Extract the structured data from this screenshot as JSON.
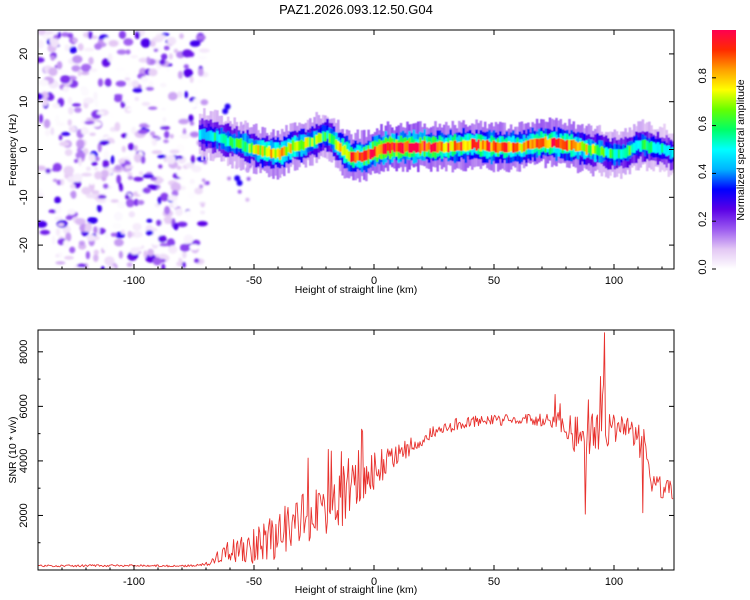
{
  "title": "PAZ1.2026.093.12.50.G04",
  "chart_data": [
    {
      "type": "heatmap",
      "xlabel": "Height of straight line (km)",
      "ylabel": "Frequency (Hz)",
      "xlim": [
        -140,
        125
      ],
      "ylim": [
        -25,
        25
      ],
      "xticks": [
        -100,
        -50,
        0,
        50,
        100
      ],
      "yticks": [
        -20,
        -10,
        0,
        10,
        20
      ],
      "noise_region_x": [
        -140,
        -73
      ],
      "ridge": {
        "x": [
          -73,
          -70,
          -65,
          -60,
          -55,
          -50,
          -45,
          -40,
          -35,
          -30,
          -25,
          -20,
          -15,
          -10,
          -5,
          0,
          5,
          10,
          20,
          30,
          40,
          50,
          60,
          70,
          80,
          90,
          95,
          100,
          105,
          110,
          115,
          120,
          125
        ],
        "frequency": [
          3,
          3,
          2.5,
          1.5,
          1,
          0,
          -0.5,
          -1,
          0.5,
          1,
          2,
          3,
          0.5,
          -1.5,
          -1.5,
          -0.5,
          0.5,
          0.5,
          0.5,
          0.5,
          1,
          0.5,
          0.5,
          1.5,
          1,
          0,
          -0.5,
          -1,
          -0.5,
          1,
          0.5,
          0,
          -1
        ],
        "amplitude": [
          0.45,
          0.5,
          0.55,
          0.55,
          0.6,
          0.7,
          0.75,
          0.8,
          0.75,
          0.7,
          0.65,
          0.6,
          0.75,
          0.85,
          0.9,
          0.92,
          0.98,
          1.0,
          0.95,
          0.85,
          0.85,
          0.9,
          0.8,
          0.9,
          0.85,
          0.7,
          0.6,
          0.55,
          0.6,
          0.55,
          0.55,
          0.5,
          0.45
        ]
      },
      "colorbar": {
        "label": "Normalized spectral amplitude",
        "range": [
          0,
          1
        ],
        "ticks": [
          "0.0",
          "0.2",
          "0.4",
          "0.6",
          "0.8"
        ],
        "colormap": [
          "#ffffff",
          "#e3c7f4",
          "#9b59f0",
          "#5a00e6",
          "#0000ff",
          "#00b4ff",
          "#00ffff",
          "#00ff66",
          "#66ff00",
          "#ffff00",
          "#ffa000",
          "#ff2a00",
          "#ff0050"
        ]
      }
    },
    {
      "type": "line",
      "xlabel": "Height of straight line (km)",
      "ylabel": "SNR (10 * v/v)",
      "xlim": [
        -140,
        125
      ],
      "ylim": [
        0,
        8800
      ],
      "xticks": [
        -100,
        -50,
        0,
        50,
        100
      ],
      "yticks": [
        2000,
        4000,
        6000,
        8000
      ],
      "color": "#e8322e",
      "trend": {
        "x": [
          -140,
          -110,
          -80,
          -75,
          -70,
          -68,
          -65,
          -60,
          -55,
          -50,
          -45,
          -40,
          -35,
          -30,
          -25,
          -20,
          -15,
          -10,
          -5,
          0,
          5,
          10,
          15,
          20,
          25,
          30,
          35,
          40,
          45,
          50,
          55,
          60,
          65,
          70,
          75,
          78,
          80,
          85,
          90,
          95,
          100,
          105,
          110,
          113,
          115,
          120,
          125
        ],
        "y": [
          150,
          160,
          150,
          170,
          200,
          300,
          500,
          700,
          800,
          900,
          1000,
          1300,
          1600,
          1800,
          2000,
          2300,
          2500,
          2900,
          3200,
          3600,
          3900,
          4200,
          4500,
          4750,
          5000,
          5200,
          5350,
          5400,
          5450,
          5500,
          5500,
          5500,
          5500,
          5500,
          5550,
          5600,
          5300,
          4900,
          5000,
          5200,
          5000,
          4900,
          4900,
          4600,
          3300,
          3000,
          2900
        ]
      },
      "spread": {
        "x": [
          -140,
          -72,
          -68,
          -60,
          -50,
          -40,
          -30,
          -20,
          -10,
          0,
          10,
          20,
          30,
          40,
          50,
          60,
          70,
          76,
          80,
          90,
          100,
          112,
          114,
          125
        ],
        "y": [
          40,
          40,
          120,
          400,
          700,
          900,
          1000,
          1100,
          1000,
          700,
          500,
          300,
          250,
          230,
          200,
          200,
          250,
          400,
          800,
          800,
          700,
          700,
          400,
          350
        ]
      }
    }
  ]
}
